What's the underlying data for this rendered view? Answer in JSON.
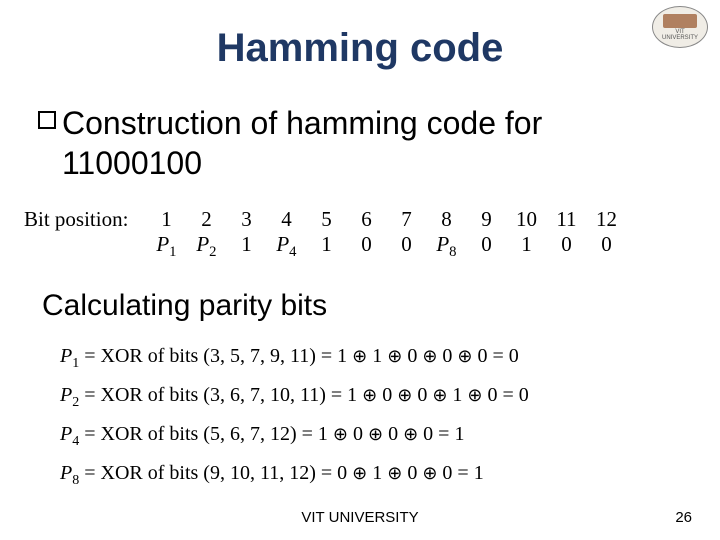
{
  "title": {
    "text": "Hamming code",
    "color": "#1f3864"
  },
  "logo": {
    "top_text": "VIT",
    "bottom_text": "UNIVERSITY"
  },
  "bullet": {
    "line1": "Construction of hamming code for",
    "line2": "11000100"
  },
  "bit_table": {
    "label": "Bit position:",
    "positions": [
      "1",
      "2",
      "3",
      "4",
      "5",
      "6",
      "7",
      "8",
      "9",
      "10",
      "11",
      "12"
    ],
    "values": [
      "P₁",
      "P₂",
      "1",
      "P₄",
      "1",
      "0",
      "0",
      "P₈",
      "0",
      "1",
      "0",
      "0"
    ]
  },
  "calc_heading": "Calculating parity bits",
  "parity": {
    "rows": [
      {
        "lhs": "P₁",
        "desc": "XOR of bits (3, 5, 7, 9, 11)",
        "rhs": "1 ⊕ 1 ⊕ 0 ⊕ 0 ⊕ 0 = 0"
      },
      {
        "lhs": "P₂",
        "desc": "XOR of bits (3, 6, 7, 10, 11)",
        "rhs": "1 ⊕ 0 ⊕ 0 ⊕ 1 ⊕ 0 = 0"
      },
      {
        "lhs": "P₄",
        "desc": "XOR of bits (5, 6, 7, 12)",
        "rhs": "1 ⊕ 0 ⊕ 0 ⊕ 0 = 1"
      },
      {
        "lhs": "P₈",
        "desc": "XOR of bits (9, 10, 11, 12)",
        "rhs": "0 ⊕ 1 ⊕ 0 ⊕ 0 = 1"
      }
    ]
  },
  "footer": {
    "university": "VIT UNIVERSITY",
    "page": "26"
  }
}
